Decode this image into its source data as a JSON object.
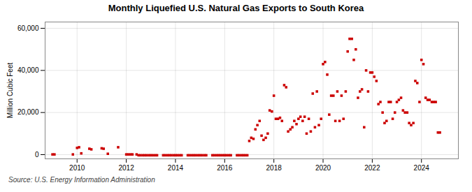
{
  "chart_data": {
    "type": "scatter",
    "title": "Monthly Liquefied U.S. Natural Gas Exports to South Korea",
    "ylabel": "Million Cubic Feet",
    "source": "Source: U.S. Energy Information Administration",
    "color": "#cc0000",
    "marker": "square",
    "grid": true,
    "xlim": [
      2008.7,
      2025.5
    ],
    "xticks": [
      2010,
      2012,
      2014,
      2016,
      2018,
      2020,
      2022,
      2024
    ],
    "ylim": [
      -2000,
      63000
    ],
    "yticks": [
      0,
      {
        "value": 20000,
        "label": "20,000"
      },
      {
        "value": 40000,
        "label": "40,000"
      },
      {
        "value": 60000,
        "label": "60,000"
      }
    ],
    "x": [
      2009.0,
      2009.08,
      2009.83,
      2010.0,
      2010.08,
      2010.17,
      2010.5,
      2010.58,
      2011.0,
      2011.08,
      2011.25,
      2011.67,
      2012.0,
      2012.08,
      2012.17,
      2012.25,
      2012.42,
      2012.5,
      2012.58,
      2012.67,
      2012.75,
      2012.83,
      2012.92,
      2013.0,
      2013.08,
      2013.17,
      2013.25,
      2013.5,
      2013.58,
      2013.67,
      2013.75,
      2013.83,
      2013.92,
      2014.0,
      2014.08,
      2014.17,
      2014.25,
      2014.5,
      2014.58,
      2014.67,
      2014.75,
      2014.83,
      2014.92,
      2015.0,
      2015.08,
      2015.17,
      2015.25,
      2015.5,
      2015.58,
      2015.67,
      2015.75,
      2015.83,
      2015.92,
      2016.0,
      2016.08,
      2016.17,
      2016.25,
      2016.5,
      2016.58,
      2016.67,
      2016.75,
      2016.83,
      2016.92,
      2017.0,
      2017.08,
      2017.17,
      2017.25,
      2017.33,
      2017.42,
      2017.5,
      2017.58,
      2017.67,
      2017.75,
      2017.83,
      2017.92,
      2018.0,
      2018.08,
      2018.17,
      2018.25,
      2018.33,
      2018.42,
      2018.5,
      2018.58,
      2018.67,
      2018.75,
      2018.83,
      2018.92,
      2019.0,
      2019.08,
      2019.17,
      2019.25,
      2019.33,
      2019.42,
      2019.5,
      2019.58,
      2019.67,
      2019.75,
      2019.83,
      2019.92,
      2020.0,
      2020.08,
      2020.17,
      2020.25,
      2020.33,
      2020.42,
      2020.5,
      2020.58,
      2020.67,
      2020.75,
      2020.83,
      2020.92,
      2021.0,
      2021.08,
      2021.17,
      2021.25,
      2021.33,
      2021.42,
      2021.5,
      2021.58,
      2021.67,
      2021.75,
      2021.83,
      2021.92,
      2022.0,
      2022.08,
      2022.17,
      2022.25,
      2022.33,
      2022.42,
      2022.5,
      2022.58,
      2022.67,
      2022.75,
      2022.83,
      2022.92,
      2023.0,
      2023.08,
      2023.17,
      2023.25,
      2023.33,
      2023.42,
      2023.5,
      2023.58,
      2023.67,
      2023.75,
      2023.83,
      2023.92,
      2024.0,
      2024.08,
      2024.17,
      2024.25,
      2024.33,
      2024.42,
      2024.5,
      2024.58,
      2024.67,
      2024.75
    ],
    "values": [
      100,
      100,
      100,
      3200,
      3500,
      600,
      2800,
      2500,
      3000,
      2800,
      400,
      3500,
      100,
      100,
      100,
      100,
      100,
      -300,
      -300,
      -300,
      -300,
      -300,
      -300,
      -300,
      -300,
      -300,
      -300,
      -300,
      -300,
      -300,
      -300,
      -300,
      -300,
      -300,
      -300,
      -300,
      -300,
      -300,
      -300,
      -300,
      -300,
      -300,
      -300,
      -300,
      -300,
      -300,
      -300,
      -300,
      -300,
      -300,
      -300,
      -300,
      -300,
      -300,
      -300,
      -300,
      -300,
      -300,
      -300,
      -300,
      -300,
      -300,
      -300,
      6500,
      8000,
      7500,
      12000,
      14000,
      16000,
      9000,
      7000,
      8000,
      10000,
      21000,
      20500,
      28000,
      17000,
      17000,
      17500,
      16000,
      33000,
      32000,
      11000,
      12000,
      13000,
      16000,
      14500,
      17000,
      18000,
      16000,
      18000,
      10000,
      17000,
      11000,
      29000,
      13000,
      30000,
      14000,
      17000,
      43000,
      44000,
      38000,
      19000,
      28000,
      28000,
      16000,
      30000,
      16000,
      28000,
      17000,
      30000,
      49000,
      55000,
      55000,
      45000,
      50000,
      27000,
      30000,
      31000,
      13000,
      40000,
      30000,
      39000,
      39000,
      37000,
      35000,
      24000,
      25000,
      20000,
      15000,
      16000,
      25000,
      25000,
      17000,
      20000,
      25000,
      26000,
      27000,
      21000,
      20000,
      20000,
      15000,
      14000,
      15000,
      35000,
      34000,
      25000,
      45000,
      43000,
      27000,
      26000,
      26000,
      25000,
      25000,
      25000,
      10500,
      10500
    ]
  }
}
